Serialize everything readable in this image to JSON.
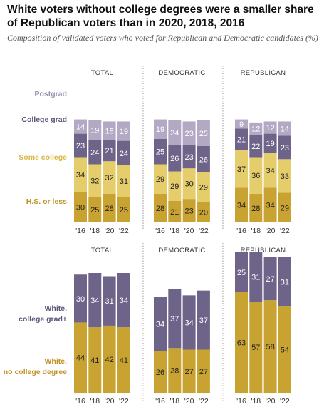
{
  "title": "White voters without college degrees were a smaller share of Republican voters than in 2020, 2018, 2016",
  "subtitle": "Composition of validated voters who voted for Republican and Democratic candidates (%)",
  "colors": {
    "postgrad": "#b4a9c4",
    "college_grad": "#6e6388",
    "some_college": "#e6cd6c",
    "hs_or_less": "#c9a331",
    "white_college_grad": "#6e6388",
    "white_no_college": "#c9a331",
    "label_postgrad": "#9a8fb0",
    "label_college_grad": "#5d5478",
    "label_some_college": "#d8b94a",
    "label_hs_or_less": "#bf9424"
  },
  "chart_data": [
    {
      "type": "bar",
      "stacked": true,
      "categories": [
        "'16",
        "'18",
        "'20",
        "'22"
      ],
      "panels": [
        "TOTAL",
        "DEMOCRATIC",
        "REPUBLICAN"
      ],
      "series": [
        {
          "name": "H.S. or less",
          "key": "hs_or_less",
          "values": [
            [
              30,
              25,
              28,
              25
            ],
            [
              28,
              21,
              23,
              20
            ],
            [
              34,
              28,
              34,
              29
            ]
          ]
        },
        {
          "name": "Some college",
          "key": "some_college",
          "values": [
            [
              34,
              32,
              32,
              31
            ],
            [
              29,
              29,
              30,
              29
            ],
            [
              37,
              36,
              34,
              33
            ]
          ]
        },
        {
          "name": "College grad",
          "key": "college_grad",
          "values": [
            [
              23,
              24,
              21,
              24
            ],
            [
              25,
              26,
              23,
              26
            ],
            [
              21,
              22,
              19,
              23
            ]
          ]
        },
        {
          "name": "Postgrad",
          "key": "postgrad",
          "values": [
            [
              14,
              19,
              18,
              19
            ],
            [
              19,
              24,
              23,
              25
            ],
            [
              9,
              12,
              12,
              14
            ]
          ]
        }
      ]
    },
    {
      "type": "bar",
      "stacked": true,
      "categories": [
        "'16",
        "'18",
        "'20",
        "'22"
      ],
      "panels": [
        "TOTAL",
        "DEMOCRATIC",
        "REPUBLICAN"
      ],
      "series": [
        {
          "name": "White, no college degree",
          "key": "white_no_college",
          "values": [
            [
              44,
              41,
              42,
              41
            ],
            [
              26,
              28,
              27,
              27
            ],
            [
              63,
              57,
              58,
              54
            ]
          ]
        },
        {
          "name": "White, college grad+",
          "key": "white_college_grad",
          "values": [
            [
              30,
              34,
              31,
              34
            ],
            [
              34,
              37,
              34,
              37
            ],
            [
              25,
              31,
              27,
              31
            ]
          ]
        }
      ]
    }
  ]
}
